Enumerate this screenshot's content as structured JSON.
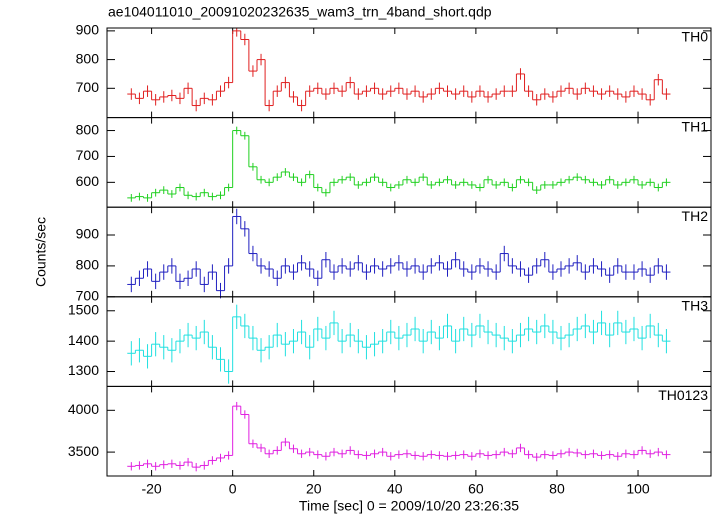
{
  "chart_data": {
    "type": "line",
    "title": "ae104011010_20091020232635_wam3_trn_4band_short.qdp",
    "ylabel": "Counts/sec",
    "xlabel": "Time [sec] 0 = 2009/10/20 23:26:35",
    "x": [
      -25,
      -23,
      -21,
      -19,
      -17,
      -15,
      -13,
      -11,
      -9,
      -7,
      -5,
      -3,
      -1,
      1,
      3,
      5,
      7,
      9,
      11,
      13,
      15,
      17,
      19,
      21,
      23,
      25,
      27,
      29,
      31,
      33,
      35,
      37,
      39,
      41,
      43,
      45,
      47,
      49,
      51,
      53,
      55,
      57,
      59,
      61,
      63,
      65,
      67,
      69,
      71,
      73,
      75,
      77,
      79,
      81,
      83,
      85,
      87,
      89,
      91,
      93,
      95,
      97,
      99,
      101,
      103,
      105,
      107
    ],
    "xlim": [
      -31,
      118
    ],
    "xticks": [
      -20,
      0,
      20,
      40,
      60,
      80,
      100
    ],
    "series": [
      {
        "name": "TH0",
        "color": "#e02020",
        "error": 20,
        "ylim": [
          598,
          910
        ],
        "yticks": [
          700,
          800,
          900
        ],
        "values": [
          680,
          665,
          690,
          660,
          670,
          675,
          665,
          700,
          640,
          665,
          660,
          690,
          720,
          900,
          870,
          760,
          800,
          640,
          690,
          720,
          670,
          640,
          690,
          700,
          680,
          700,
          690,
          720,
          680,
          690,
          700,
          680,
          690,
          700,
          680,
          690,
          670,
          680,
          700,
          690,
          680,
          690,
          670,
          690,
          670,
          680,
          690,
          690,
          750,
          690,
          660,
          680,
          670,
          690,
          700,
          680,
          700,
          690,
          680,
          690,
          680,
          670,
          690,
          680,
          660,
          730,
          680
        ]
      },
      {
        "name": "TH1",
        "color": "#20d020",
        "error": 15,
        "ylim": [
          504,
          850
        ],
        "yticks": [
          600,
          700,
          800
        ],
        "values": [
          540,
          545,
          540,
          560,
          570,
          555,
          580,
          550,
          545,
          560,
          545,
          550,
          580,
          800,
          780,
          660,
          610,
          600,
          620,
          640,
          620,
          600,
          630,
          580,
          560,
          600,
          610,
          620,
          590,
          600,
          620,
          600,
          580,
          590,
          610,
          600,
          620,
          590,
          600,
          610,
          590,
          600,
          590,
          580,
          610,
          590,
          600,
          580,
          610,
          600,
          570,
          590,
          590,
          600,
          610,
          620,
          610,
          600,
          590,
          610,
          590,
          600,
          610,
          590,
          600,
          580,
          600
        ]
      },
      {
        "name": "TH2",
        "color": "#2020c0",
        "error": 25,
        "ylim": [
          700,
          990
        ],
        "yticks": [
          700,
          800,
          900
        ],
        "values": [
          740,
          760,
          790,
          750,
          780,
          800,
          750,
          760,
          790,
          740,
          780,
          720,
          800,
          960,
          920,
          840,
          800,
          790,
          760,
          800,
          780,
          810,
          790,
          760,
          820,
          780,
          800,
          790,
          810,
          780,
          800,
          790,
          800,
          810,
          790,
          800,
          780,
          800,
          810,
          790,
          820,
          790,
          780,
          800,
          790,
          780,
          840,
          800,
          790,
          770,
          800,
          820,
          780,
          790,
          800,
          810,
          780,
          800,
          790,
          770,
          800,
          780,
          780,
          790,
          770,
          800,
          780
        ]
      },
      {
        "name": "TH3",
        "color": "#20e0e0",
        "error": 40,
        "ylim": [
          1251,
          1546
        ],
        "yticks": [
          1300,
          1400,
          1500
        ],
        "values": [
          1360,
          1370,
          1350,
          1390,
          1380,
          1370,
          1400,
          1420,
          1410,
          1430,
          1380,
          1340,
          1300,
          1480,
          1450,
          1410,
          1370,
          1380,
          1420,
          1390,
          1400,
          1430,
          1380,
          1440,
          1410,
          1460,
          1400,
          1420,
          1400,
          1380,
          1390,
          1400,
          1430,
          1410,
          1420,
          1440,
          1400,
          1430,
          1410,
          1450,
          1400,
          1440,
          1420,
          1450,
          1430,
          1420,
          1410,
          1400,
          1420,
          1440,
          1430,
          1450,
          1430,
          1410,
          1420,
          1440,
          1450,
          1430,
          1460,
          1420,
          1460,
          1430,
          1440,
          1410,
          1450,
          1420,
          1400
        ]
      },
      {
        "name": "TH0123",
        "color": "#e020e0",
        "error": 50,
        "ylim": [
          3214,
          4286
        ],
        "yticks": [
          3500,
          4000
        ],
        "values": [
          3330,
          3340,
          3360,
          3330,
          3350,
          3360,
          3340,
          3380,
          3320,
          3340,
          3400,
          3430,
          3460,
          4050,
          3950,
          3600,
          3550,
          3480,
          3520,
          3620,
          3540,
          3480,
          3500,
          3470,
          3450,
          3500,
          3480,
          3520,
          3470,
          3460,
          3480,
          3500,
          3450,
          3470,
          3480,
          3460,
          3450,
          3470,
          3460,
          3450,
          3460,
          3470,
          3450,
          3480,
          3460,
          3470,
          3500,
          3480,
          3550,
          3470,
          3440,
          3470,
          3460,
          3480,
          3500,
          3490,
          3470,
          3480,
          3460,
          3470,
          3450,
          3480,
          3470,
          3520,
          3480,
          3500,
          3470
        ]
      }
    ]
  }
}
